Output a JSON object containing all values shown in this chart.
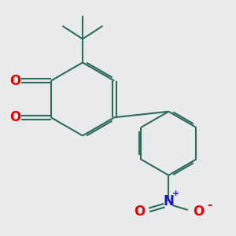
{
  "bg_color": "#e8eaeb",
  "bond_color": "#2d6b5a",
  "oxygen_color": "#e60000",
  "nitrogen_color": "#1414cc",
  "line_width": 1.5,
  "dbo": 0.09,
  "figsize": [
    3.0,
    3.0
  ],
  "dpi": 100,
  "xlim": [
    0,
    10
  ],
  "ylim": [
    0,
    10
  ]
}
